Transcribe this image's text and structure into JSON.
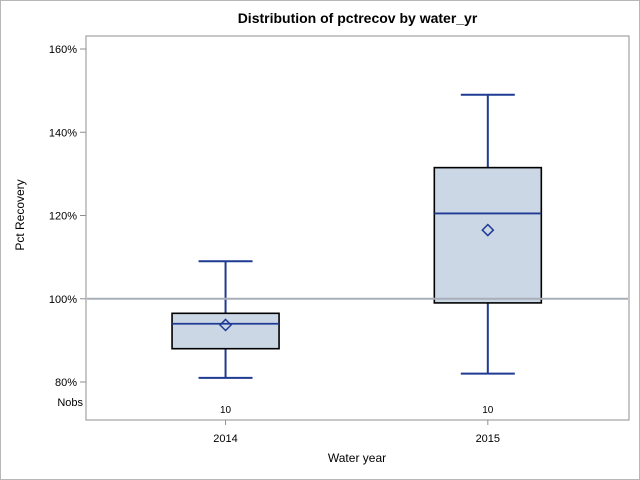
{
  "window": {
    "kind": "sas-ods-boxplot-output"
  },
  "chart_data": {
    "type": "boxplot",
    "title": "Distribution of pctrecov by water_yr",
    "xlabel": "Water year",
    "ylabel": "Pct Recovery",
    "ylim": [
      80,
      160
    ],
    "y_ticks": [
      160,
      140,
      120,
      100,
      80
    ],
    "y_tick_labels": [
      "160%",
      "140%",
      "120%",
      "100%",
      "80%"
    ],
    "grid": false,
    "legend": "none",
    "reference_line_y": 100,
    "nobs_row_label": "Nobs",
    "categories": [
      "2014",
      "2015"
    ],
    "series": [
      {
        "category": "2014",
        "nobs": "10",
        "min": 81,
        "q1": 88,
        "median": 94,
        "mean": 93.7,
        "q3": 96.5,
        "max": 109
      },
      {
        "category": "2015",
        "nobs": "10",
        "min": 82,
        "q1": 99,
        "median": 120.5,
        "mean": 116.5,
        "q3": 131.5,
        "max": 149
      }
    ],
    "colors": {
      "box_fill": "#ccd7e6",
      "box_border": "#000000",
      "line_blue": "#1f3a93",
      "frame_gray": "#8f8f8f",
      "tick_gray": "#8f8f8f",
      "reference_line_gray": "#a9afb8",
      "outer_border_gray": "#b7b7b7",
      "text_black": "#000000"
    }
  }
}
